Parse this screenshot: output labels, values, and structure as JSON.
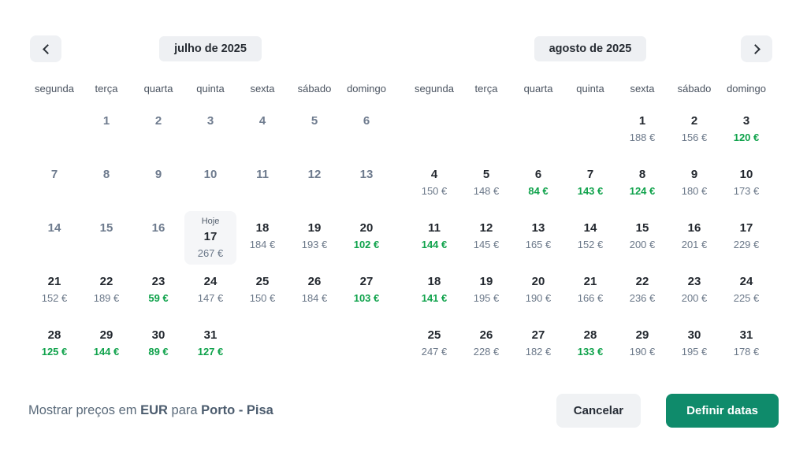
{
  "nav": {
    "prev_icon": "chevron-left",
    "next_icon": "chevron-right"
  },
  "today_label": "Hoje",
  "colors": {
    "low_price_green": "#0fa24b",
    "confirm_teal": "#0f8b6b",
    "chip_gray": "#eef0f3"
  },
  "months": [
    {
      "key": "julho",
      "label": "julho de 2025",
      "weekdays": [
        "segunda",
        "terça",
        "quarta",
        "quinta",
        "sexta",
        "sábado",
        "domingo"
      ],
      "weeks": [
        [
          null,
          {
            "day": 1,
            "past": true
          },
          {
            "day": 2,
            "past": true
          },
          {
            "day": 3,
            "past": true
          },
          {
            "day": 4,
            "past": true
          },
          {
            "day": 5,
            "past": true
          },
          {
            "day": 6,
            "past": true
          }
        ],
        [
          {
            "day": 7,
            "past": true
          },
          {
            "day": 8,
            "past": true
          },
          {
            "day": 9,
            "past": true
          },
          {
            "day": 10,
            "past": true
          },
          {
            "day": 11,
            "past": true
          },
          {
            "day": 12,
            "past": true
          },
          {
            "day": 13,
            "past": true
          }
        ],
        [
          {
            "day": 14,
            "past": true
          },
          {
            "day": 15,
            "past": true
          },
          {
            "day": 16,
            "past": true
          },
          {
            "day": 17,
            "today": true,
            "price": "267 €"
          },
          {
            "day": 18,
            "price": "184 €"
          },
          {
            "day": 19,
            "price": "193 €"
          },
          {
            "day": 20,
            "price": "102 €",
            "low": true
          }
        ],
        [
          {
            "day": 21,
            "price": "152 €"
          },
          {
            "day": 22,
            "price": "189 €"
          },
          {
            "day": 23,
            "price": "59 €",
            "low": true
          },
          {
            "day": 24,
            "price": "147 €"
          },
          {
            "day": 25,
            "price": "150 €"
          },
          {
            "day": 26,
            "price": "184 €"
          },
          {
            "day": 27,
            "price": "103 €",
            "low": true
          }
        ],
        [
          {
            "day": 28,
            "price": "125 €",
            "low": true
          },
          {
            "day": 29,
            "price": "144 €",
            "low": true
          },
          {
            "day": 30,
            "price": "89 €",
            "low": true
          },
          {
            "day": 31,
            "price": "127 €",
            "low": true
          },
          null,
          null,
          null
        ]
      ]
    },
    {
      "key": "agosto",
      "label": "agosto de 2025",
      "weekdays": [
        "segunda",
        "terça",
        "quarta",
        "quinta",
        "sexta",
        "sábado",
        "domingo"
      ],
      "weeks": [
        [
          null,
          null,
          null,
          null,
          {
            "day": 1,
            "price": "188 €"
          },
          {
            "day": 2,
            "price": "156 €"
          },
          {
            "day": 3,
            "price": "120 €",
            "low": true
          }
        ],
        [
          {
            "day": 4,
            "price": "150 €"
          },
          {
            "day": 5,
            "price": "148 €"
          },
          {
            "day": 6,
            "price": "84 €",
            "low": true
          },
          {
            "day": 7,
            "price": "143 €",
            "low": true
          },
          {
            "day": 8,
            "price": "124 €",
            "low": true
          },
          {
            "day": 9,
            "price": "180 €"
          },
          {
            "day": 10,
            "price": "173 €"
          }
        ],
        [
          {
            "day": 11,
            "price": "144 €",
            "low": true
          },
          {
            "day": 12,
            "price": "145 €"
          },
          {
            "day": 13,
            "price": "165 €"
          },
          {
            "day": 14,
            "price": "152 €"
          },
          {
            "day": 15,
            "price": "200 €"
          },
          {
            "day": 16,
            "price": "201 €"
          },
          {
            "day": 17,
            "price": "229 €"
          }
        ],
        [
          {
            "day": 18,
            "price": "141 €",
            "low": true
          },
          {
            "day": 19,
            "price": "195 €"
          },
          {
            "day": 20,
            "price": "190 €"
          },
          {
            "day": 21,
            "price": "166 €"
          },
          {
            "day": 22,
            "price": "236 €"
          },
          {
            "day": 23,
            "price": "200 €"
          },
          {
            "day": 24,
            "price": "225 €"
          }
        ],
        [
          {
            "day": 25,
            "price": "247 €"
          },
          {
            "day": 26,
            "price": "228 €"
          },
          {
            "day": 27,
            "price": "182 €"
          },
          {
            "day": 28,
            "price": "133 €",
            "low": true
          },
          {
            "day": 29,
            "price": "190 €"
          },
          {
            "day": 30,
            "price": "195 €"
          },
          {
            "day": 31,
            "price": "178 €"
          }
        ]
      ]
    }
  ],
  "footer": {
    "text_prefix": "Mostrar preços em ",
    "currency": "EUR",
    "text_middle": " para ",
    "route": "Porto - Pisa"
  },
  "buttons": {
    "cancel_label": "Cancelar",
    "confirm_label": "Definir datas"
  }
}
